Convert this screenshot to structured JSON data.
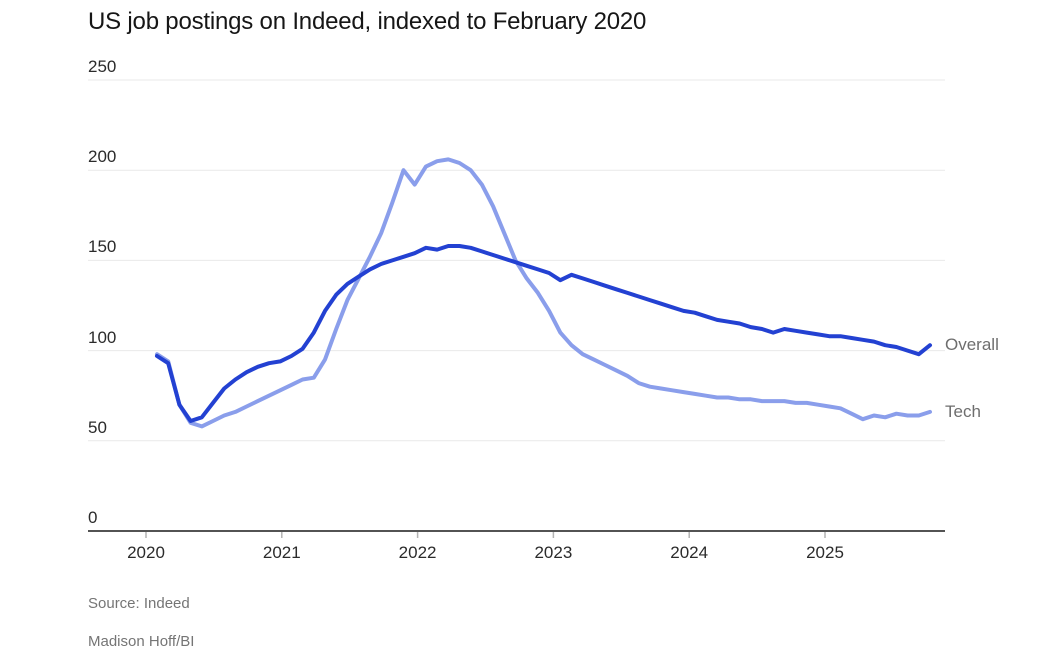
{
  "title": "US job postings on Indeed, indexed to February 2020",
  "footer": {
    "source": "Source: Indeed",
    "byline": "Madison Hoff/BI"
  },
  "colors": {
    "overall_line": "#2341d2",
    "tech_line": "#8a9eeb",
    "grid_line": "#e9e9e9",
    "axis_line": "#1a1a1a",
    "tick_mark": "#b3b3b3",
    "axis_text": "#2b2b2b",
    "series_label_text": "#6e6e6e",
    "source_text": "#757575"
  },
  "chart_data": {
    "type": "line",
    "title": "US job postings on Indeed, indexed to February 2020",
    "x_start": "2020-02",
    "x_end": "2025-11",
    "x_interval": "monthly",
    "xticks": [
      "2020",
      "2021",
      "2022",
      "2023",
      "2024",
      "2025"
    ],
    "yticks": [
      "250",
      "200",
      "150",
      "100",
      "50",
      "0"
    ],
    "ytick_values": [
      250,
      200,
      150,
      100,
      50,
      0
    ],
    "ylim": [
      0,
      250
    ],
    "grid": "horizontal-only",
    "legend_position": "right-of-line-ends",
    "baseline_note": "indexed, Feb 2020 = 100",
    "series": [
      {
        "name": "Overall",
        "label": "Overall",
        "color": "#2341d2",
        "values": [
          97,
          93,
          70,
          61,
          63,
          71,
          79,
          84,
          88,
          91,
          93,
          94,
          97,
          101,
          110,
          122,
          131,
          137,
          141,
          145,
          148,
          150,
          152,
          154,
          157,
          156,
          158,
          158,
          157,
          155,
          153,
          151,
          149,
          147,
          145,
          143,
          139,
          142,
          140,
          138,
          136,
          134,
          132,
          130,
          128,
          126,
          124,
          122,
          121,
          119,
          117,
          116,
          115,
          113,
          112,
          110,
          112,
          111,
          110,
          109,
          108,
          108,
          107,
          106,
          105,
          103,
          102,
          100,
          98,
          103
        ]
      },
      {
        "name": "Tech",
        "label": "Tech",
        "color": "#8a9eeb",
        "values": [
          98,
          94,
          70,
          60,
          58,
          61,
          64,
          66,
          69,
          72,
          75,
          78,
          81,
          84,
          85,
          95,
          112,
          128,
          140,
          152,
          165,
          182,
          200,
          192,
          202,
          205,
          206,
          204,
          200,
          192,
          180,
          165,
          150,
          140,
          132,
          122,
          110,
          103,
          98,
          95,
          92,
          89,
          86,
          82,
          80,
          79,
          78,
          77,
          76,
          75,
          74,
          74,
          73,
          73,
          72,
          72,
          72,
          71,
          71,
          70,
          69,
          68,
          65,
          62,
          64,
          63,
          65,
          64,
          64,
          66
        ]
      }
    ]
  }
}
